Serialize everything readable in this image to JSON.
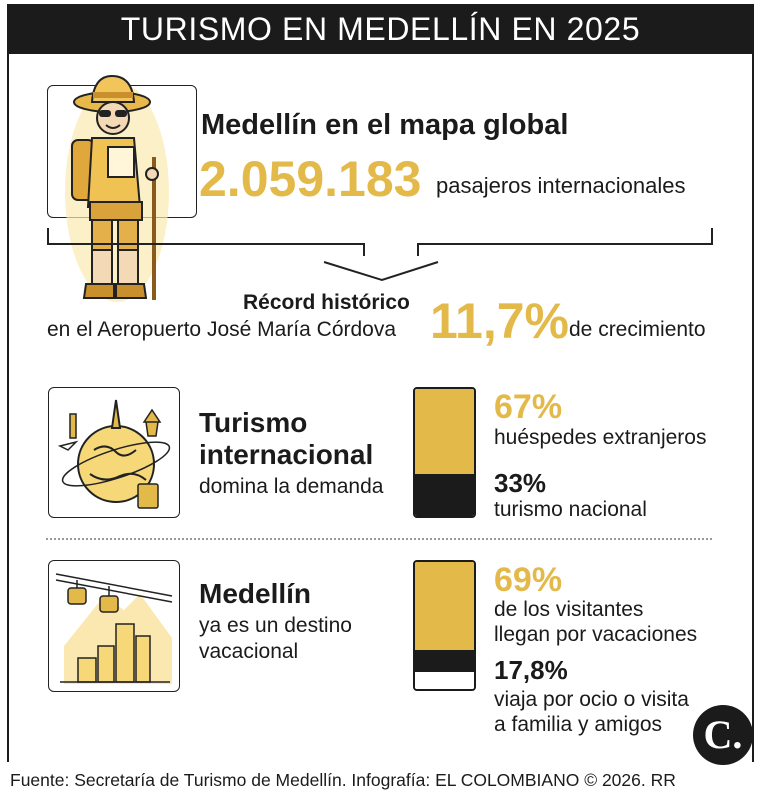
{
  "title": "TURISMO EN MEDELLÍN EN 2025",
  "section1": {
    "heading": "Medellín en el mapa global",
    "passengers_value": "2.059.183",
    "passengers_label": "pasajeros internacionales",
    "record_title": "Récord histórico",
    "record_place": "en el Aeropuerto José María Córdova",
    "growth_value": "11,7%",
    "growth_label": "de crecimiento"
  },
  "section2": {
    "heading_line1": "Turismo",
    "heading_line2": "internacional",
    "subtext": "domina la demanda",
    "stat1_value": "67%",
    "stat1_label": "huéspedes extranjeros",
    "stat2_value": "33%",
    "stat2_label": "turismo nacional",
    "bar_shares": [
      67,
      33
    ]
  },
  "section3": {
    "heading": "Medellín",
    "subtext_line1": "ya es un destino",
    "subtext_line2": "vacacional",
    "stat1_value": "69%",
    "stat1_label_line1": "de los visitantes",
    "stat1_label_line2": "llegan por vacaciones",
    "stat2_value": "17,8%",
    "stat2_label_line1": "viaja por ocio o visita",
    "stat2_label_line2": "a familia y amigos",
    "bar_shares": [
      69,
      17.8,
      13.2
    ]
  },
  "logo_letter": "C.",
  "source": "Fuente: Secretaría de Turismo de Medellín. Infografía: EL COLOMBIANO © 2026. RR",
  "colors": {
    "gold": "#e3b94a",
    "dark": "#1b1b1b",
    "white": "#ffffff"
  },
  "icons": [
    "tourist-illustration-icon",
    "globe-landmarks-icon",
    "cable-car-city-icon",
    "colombiano-logo-icon"
  ]
}
